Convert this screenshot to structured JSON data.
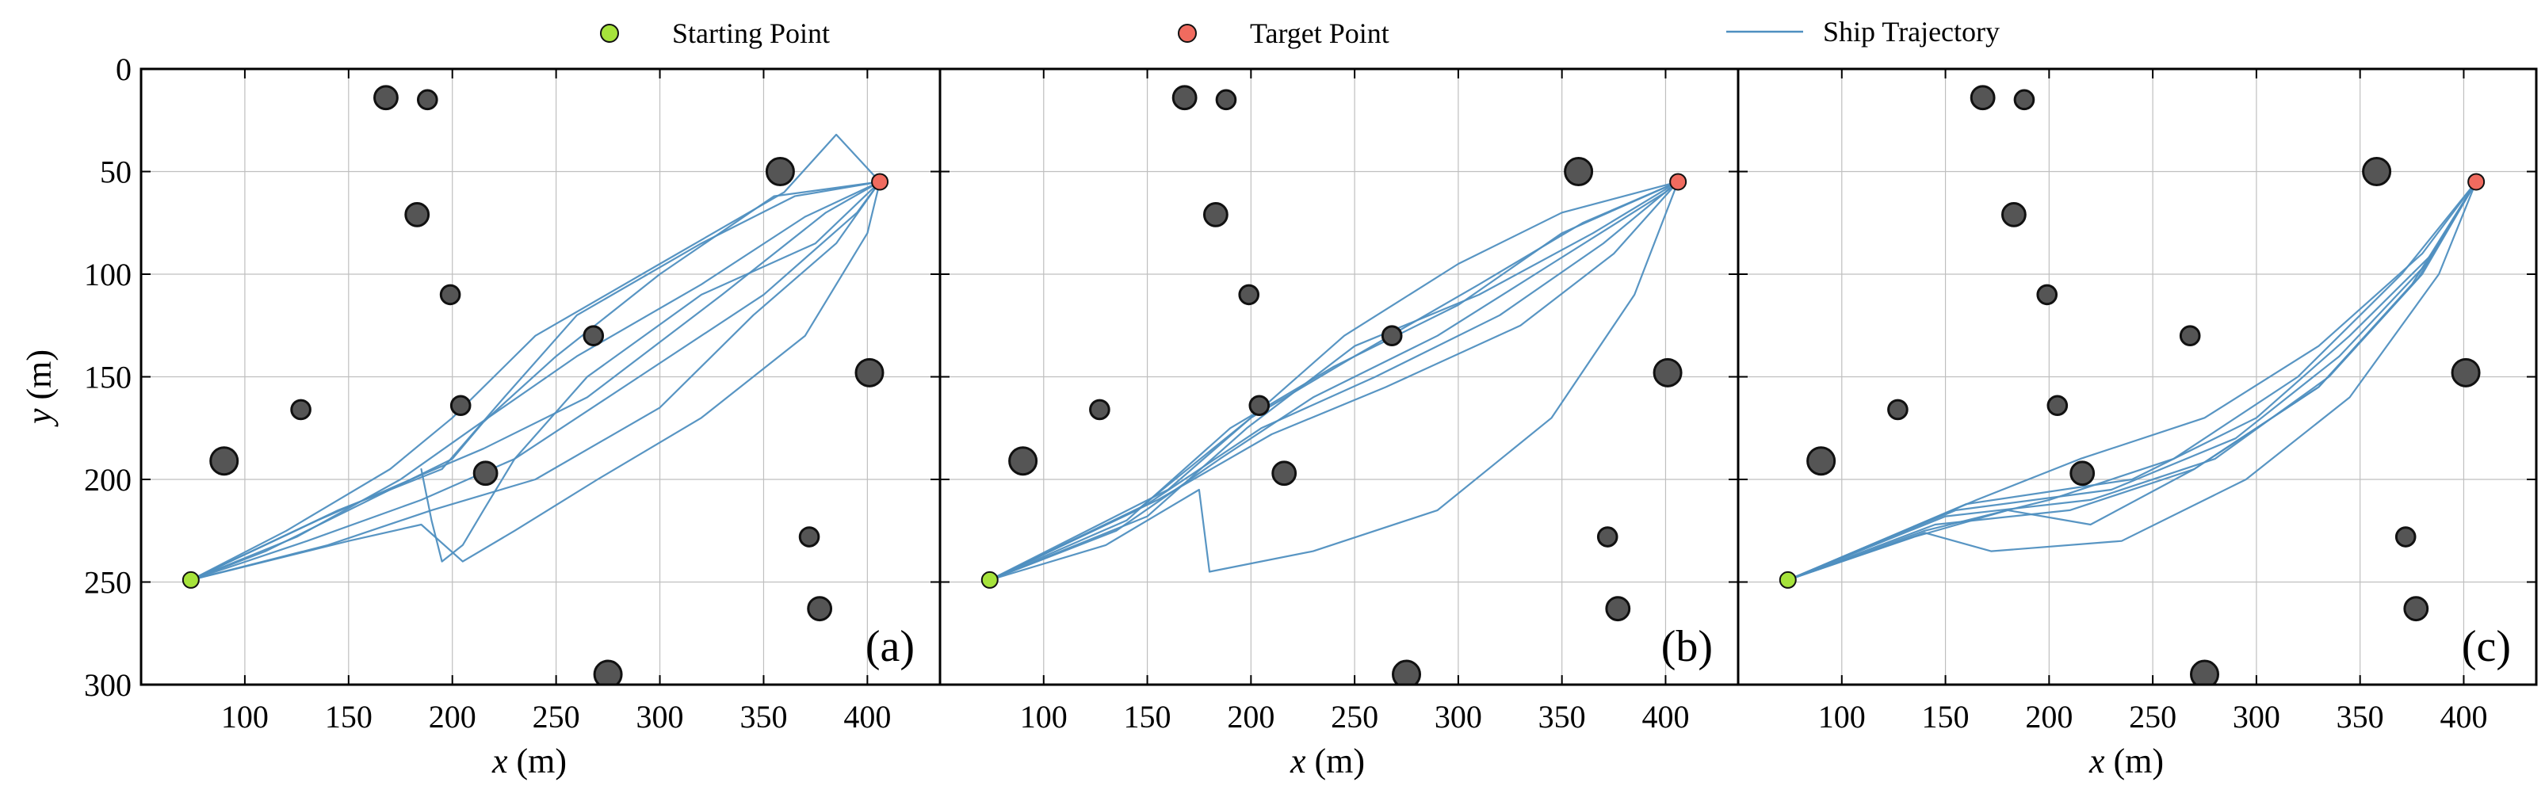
{
  "colors": {
    "start": "#a6e33b",
    "target": "#f06b5f",
    "trajectory": "#4f8fc0",
    "obstacle": "#555555",
    "obstacle_edge": "#111111",
    "grid": "#bfbfbf"
  },
  "legend": {
    "start": "Starting Point",
    "target": "Target Point",
    "trajectory": "Ship Trajectory"
  },
  "chart_data": {
    "type": "line",
    "y_inverted": true,
    "xlim": [
      50,
      435
    ],
    "ylim": [
      0,
      300
    ],
    "grid": true,
    "legend_position": "top",
    "xticks": [
      100,
      150,
      200,
      250,
      300,
      350,
      400
    ],
    "yticks": [
      0,
      50,
      100,
      150,
      200,
      250,
      300
    ],
    "xlabel_italic": "x",
    "xlabel_unit": " (m)",
    "ylabel_italic": "y",
    "ylabel_unit": " (m)",
    "start_point": [
      74,
      249
    ],
    "target_point": [
      406,
      55
    ],
    "obstacles": [
      {
        "x": 168,
        "y": 14,
        "r": 5.5
      },
      {
        "x": 188,
        "y": 15,
        "r": 4.5
      },
      {
        "x": 183,
        "y": 71,
        "r": 5.5
      },
      {
        "x": 199,
        "y": 110,
        "r": 4.5
      },
      {
        "x": 268,
        "y": 130,
        "r": 4.5
      },
      {
        "x": 358,
        "y": 50,
        "r": 6.5
      },
      {
        "x": 127,
        "y": 166,
        "r": 4.5
      },
      {
        "x": 204,
        "y": 164,
        "r": 4.5
      },
      {
        "x": 401,
        "y": 148,
        "r": 6.5
      },
      {
        "x": 90,
        "y": 191,
        "r": 6.5
      },
      {
        "x": 216,
        "y": 197,
        "r": 5.5
      },
      {
        "x": 372,
        "y": 228,
        "r": 4.5
      },
      {
        "x": 377,
        "y": 263,
        "r": 5.5
      },
      {
        "x": 275,
        "y": 295,
        "r": 6.5
      }
    ],
    "panels": [
      {
        "label": "(a)",
        "series": [
          {
            "points": [
              [
                74,
                249
              ],
              [
                120,
                225
              ],
              [
                170,
                195
              ],
              [
                200,
                170
              ],
              [
                240,
                130
              ],
              [
                300,
                95
              ],
              [
                360,
                60
              ],
              [
                385,
                32
              ],
              [
                406,
                55
              ]
            ]
          },
          {
            "points": [
              [
                74,
                249
              ],
              [
                125,
                228
              ],
              [
                175,
                200
              ],
              [
                210,
                175
              ],
              [
                260,
                140
              ],
              [
                320,
                105
              ],
              [
                370,
                72
              ],
              [
                406,
                55
              ]
            ]
          },
          {
            "points": [
              [
                74,
                249
              ],
              [
                130,
                230
              ],
              [
                185,
                210
              ],
              [
                230,
                190
              ],
              [
                290,
                150
              ],
              [
                350,
                110
              ],
              [
                395,
                70
              ],
              [
                406,
                55
              ]
            ]
          },
          {
            "points": [
              [
                74,
                249
              ],
              [
                140,
                232
              ],
              [
                190,
                215
              ],
              [
                240,
                200
              ],
              [
                300,
                165
              ],
              [
                345,
                120
              ],
              [
                385,
                85
              ],
              [
                406,
                55
              ]
            ]
          },
          {
            "points": [
              [
                74,
                249
              ],
              [
                150,
                230
              ],
              [
                185,
                222
              ],
              [
                205,
                240
              ],
              [
                230,
                225
              ],
              [
                270,
                200
              ],
              [
                320,
                170
              ],
              [
                370,
                130
              ],
              [
                400,
                80
              ],
              [
                406,
                55
              ]
            ]
          },
          {
            "points": [
              [
                74,
                249
              ],
              [
                110,
                235
              ],
              [
                160,
                210
              ],
              [
                200,
                190
              ],
              [
                215,
                172
              ],
              [
                250,
                140
              ],
              [
                300,
                100
              ],
              [
                355,
                62
              ],
              [
                406,
                55
              ]
            ]
          },
          {
            "points": [
              [
                74,
                249
              ],
              [
                135,
                220
              ],
              [
                180,
                200
              ],
              [
                215,
                185
              ],
              [
                265,
                160
              ],
              [
                330,
                110
              ],
              [
                380,
                70
              ],
              [
                406,
                55
              ]
            ]
          },
          {
            "points": [
              [
                74,
                249
              ],
              [
                145,
                215
              ],
              [
                195,
                195
              ],
              [
                225,
                160
              ],
              [
                260,
                120
              ],
              [
                320,
                85
              ],
              [
                365,
                62
              ],
              [
                406,
                55
              ]
            ]
          },
          {
            "points": [
              [
                185,
                195
              ],
              [
                190,
                220
              ],
              [
                195,
                240
              ],
              [
                205,
                232
              ],
              [
                215,
                215
              ],
              [
                230,
                190
              ],
              [
                265,
                150
              ],
              [
                320,
                110
              ],
              [
                375,
                85
              ],
              [
                406,
                55
              ]
            ]
          }
        ]
      },
      {
        "label": "(b)",
        "series": [
          {
            "points": [
              [
                74,
                249
              ],
              [
                140,
                220
              ],
              [
                190,
                175
              ],
              [
                240,
                145
              ],
              [
                300,
                115
              ],
              [
                350,
                80
              ],
              [
                406,
                55
              ]
            ]
          },
          {
            "points": [
              [
                74,
                249
              ],
              [
                145,
                215
              ],
              [
                200,
                170
              ],
              [
                250,
                140
              ],
              [
                310,
                105
              ],
              [
                360,
                75
              ],
              [
                406,
                55
              ]
            ]
          },
          {
            "points": [
              [
                74,
                249
              ],
              [
                150,
                212
              ],
              [
                205,
                175
              ],
              [
                260,
                150
              ],
              [
                320,
                120
              ],
              [
                370,
                85
              ],
              [
                406,
                55
              ]
            ]
          },
          {
            "points": [
              [
                74,
                249
              ],
              [
                155,
                210
              ],
              [
                210,
                178
              ],
              [
                265,
                155
              ],
              [
                330,
                125
              ],
              [
                375,
                90
              ],
              [
                406,
                55
              ]
            ]
          },
          {
            "points": [
              [
                74,
                249
              ],
              [
                160,
                205
              ],
              [
                200,
                170
              ],
              [
                245,
                130
              ],
              [
                300,
                95
              ],
              [
                350,
                70
              ],
              [
                406,
                55
              ]
            ]
          },
          {
            "points": [
              [
                74,
                249
              ],
              [
                135,
                225
              ],
              [
                185,
                190
              ],
              [
                230,
                160
              ],
              [
                290,
                130
              ],
              [
                345,
                95
              ],
              [
                400,
                60
              ],
              [
                406,
                55
              ]
            ]
          },
          {
            "points": [
              [
                74,
                249
              ],
              [
                130,
                232
              ],
              [
                175,
                205
              ],
              [
                180,
                245
              ],
              [
                230,
                235
              ],
              [
                290,
                215
              ],
              [
                345,
                170
              ],
              [
                385,
                110
              ],
              [
                406,
                55
              ]
            ]
          },
          {
            "points": [
              [
                74,
                249
              ],
              [
                150,
                218
              ],
              [
                198,
                175
              ],
              [
                250,
                135
              ],
              [
                310,
                110
              ],
              [
                365,
                80
              ],
              [
                406,
                55
              ]
            ]
          }
        ]
      },
      {
        "label": "(c)",
        "series": [
          {
            "points": [
              [
                74,
                249
              ],
              [
                140,
                225
              ],
              [
                200,
                210
              ],
              [
                260,
                190
              ],
              [
                320,
                150
              ],
              [
                370,
                100
              ],
              [
                406,
                55
              ]
            ]
          },
          {
            "points": [
              [
                74,
                249
              ],
              [
                145,
                222
              ],
              [
                210,
                215
              ],
              [
                270,
                195
              ],
              [
                330,
                155
              ],
              [
                375,
                105
              ],
              [
                406,
                55
              ]
            ]
          },
          {
            "points": [
              [
                74,
                249
              ],
              [
                150,
                218
              ],
              [
                220,
                210
              ],
              [
                280,
                190
              ],
              [
                335,
                150
              ],
              [
                380,
                100
              ],
              [
                406,
                55
              ]
            ]
          },
          {
            "points": [
              [
                74,
                249
              ],
              [
                155,
                215
              ],
              [
                230,
                205
              ],
              [
                290,
                180
              ],
              [
                340,
                140
              ],
              [
                382,
                95
              ],
              [
                406,
                55
              ]
            ]
          },
          {
            "points": [
              [
                74,
                249
              ],
              [
                160,
                212
              ],
              [
                240,
                200
              ],
              [
                300,
                170
              ],
              [
                345,
                130
              ],
              [
                385,
                90
              ],
              [
                406,
                55
              ]
            ]
          },
          {
            "points": [
              [
                74,
                249
              ],
              [
                135,
                228
              ],
              [
                180,
                215
              ],
              [
                220,
                222
              ],
              [
                270,
                195
              ],
              [
                330,
                155
              ],
              [
                378,
                102
              ],
              [
                406,
                55
              ]
            ]
          },
          {
            "points": [
              [
                74,
                249
              ],
              [
                165,
                210
              ],
              [
                215,
                190
              ],
              [
                275,
                170
              ],
              [
                330,
                135
              ],
              [
                380,
                90
              ],
              [
                406,
                55
              ]
            ]
          },
          {
            "points": [
              [
                74,
                249
              ],
              [
                140,
                226
              ],
              [
                172,
                235
              ],
              [
                235,
                230
              ],
              [
                295,
                200
              ],
              [
                345,
                160
              ],
              [
                388,
                100
              ],
              [
                406,
                55
              ]
            ]
          }
        ]
      }
    ]
  }
}
